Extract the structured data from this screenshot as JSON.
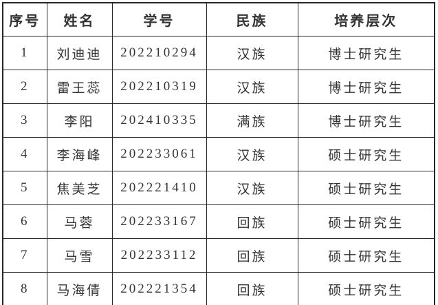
{
  "table": {
    "headers": [
      "序号",
      "姓名",
      "学号",
      "民族",
      "培养层次"
    ],
    "rows": [
      {
        "no": "1",
        "name": "刘迪迪",
        "student_id": "202210294",
        "ethnicity": "汉族",
        "level": "博士研究生"
      },
      {
        "no": "2",
        "name": "雷王蕊",
        "student_id": "202210319",
        "ethnicity": "汉族",
        "level": "博士研究生"
      },
      {
        "no": "3",
        "name": "李阳",
        "student_id": "202410335",
        "ethnicity": "满族",
        "level": "博士研究生"
      },
      {
        "no": "4",
        "name": "李海峰",
        "student_id": "202233061",
        "ethnicity": "汉族",
        "level": "硕士研究生"
      },
      {
        "no": "5",
        "name": "焦美芝",
        "student_id": "202221410",
        "ethnicity": "汉族",
        "level": "硕士研究生"
      },
      {
        "no": "6",
        "name": "马蓉",
        "student_id": "202233167",
        "ethnicity": "回族",
        "level": "硕士研究生"
      },
      {
        "no": "7",
        "name": "马雪",
        "student_id": "202233112",
        "ethnicity": "回族",
        "level": "硕士研究生"
      },
      {
        "no": "8",
        "name": "马海倩",
        "student_id": "202221354",
        "ethnicity": "回族",
        "level": "硕士研究生"
      }
    ],
    "colors": {
      "text": "#333333",
      "border": "#262626",
      "background": "#ffffff"
    }
  }
}
